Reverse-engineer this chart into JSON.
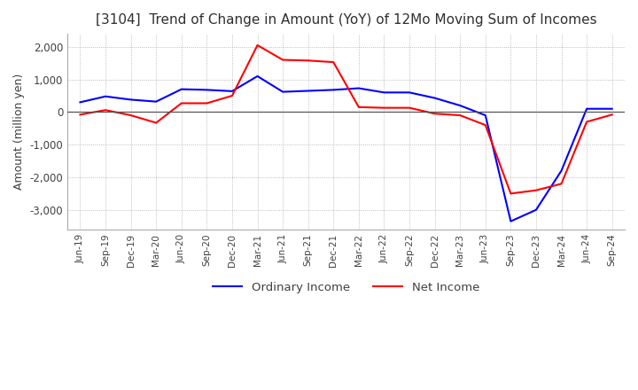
{
  "title": "[3104]  Trend of Change in Amount (YoY) of 12Mo Moving Sum of Incomes",
  "ylabel": "Amount (million yen)",
  "ylim": [
    -3600,
    2400
  ],
  "yticks": [
    -3000,
    -2000,
    -1000,
    0,
    1000,
    2000
  ],
  "x_labels": [
    "Jun-19",
    "Sep-19",
    "Dec-19",
    "Mar-20",
    "Jun-20",
    "Sep-20",
    "Dec-20",
    "Mar-21",
    "Jun-21",
    "Sep-21",
    "Dec-21",
    "Mar-22",
    "Jun-22",
    "Sep-22",
    "Dec-22",
    "Mar-23",
    "Jun-23",
    "Sep-23",
    "Dec-23",
    "Mar-24",
    "Jun-24",
    "Sep-24"
  ],
  "ordinary_income": [
    300,
    480,
    380,
    320,
    700,
    680,
    640,
    1100,
    620,
    650,
    680,
    730,
    600,
    600,
    430,
    200,
    -100,
    -3350,
    -3000,
    -1800,
    100,
    100
  ],
  "net_income": [
    -80,
    60,
    -100,
    -330,
    270,
    270,
    500,
    2050,
    1600,
    1580,
    1530,
    150,
    130,
    130,
    -50,
    -100,
    -400,
    -2500,
    -2400,
    -2200,
    -300,
    -80
  ],
  "ordinary_color": "#0000ff",
  "net_color": "#ff0000",
  "line_width": 1.5,
  "background_color": "#ffffff",
  "grid_color": "#aaaaaa",
  "title_color": "#303030",
  "legend_labels": [
    "Ordinary Income",
    "Net Income"
  ]
}
